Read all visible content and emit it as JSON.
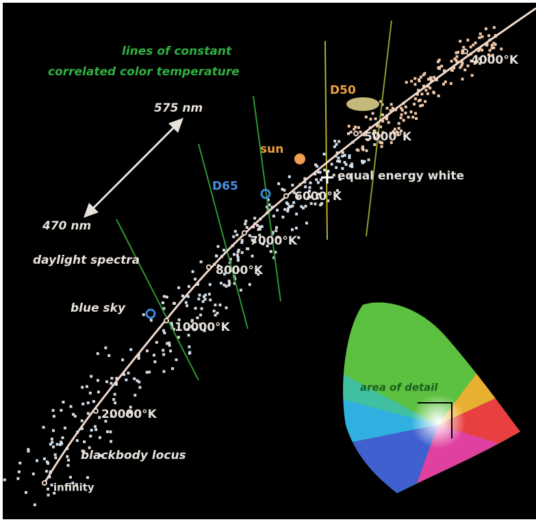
{
  "title": {
    "line1": "lines of constant",
    "line2": "correlated color temperature"
  },
  "wavelengths": {
    "upper": "575 nm",
    "lower": "470 nm"
  },
  "labels": {
    "daylight": "daylight spectra",
    "locus": "blackbody locus",
    "blue_sky": "blue sky",
    "equal_energy": "equal energy white"
  },
  "illuminants": {
    "d50": "D50",
    "sun": "sun",
    "d65": "D65"
  },
  "temperatures": [
    "4000°K",
    "5000°K",
    "6000°K",
    "7000°K",
    "8000°K",
    "10000°K",
    "20000°K",
    "infinity"
  ],
  "inset": {
    "label": "area of detail"
  }
}
